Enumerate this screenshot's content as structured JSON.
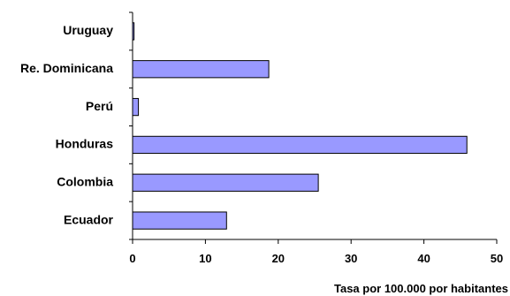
{
  "chart_data": {
    "type": "bar",
    "orientation": "horizontal",
    "categories": [
      "Uruguay",
      "Re. Dominicana",
      "Perú",
      "Honduras",
      "Colombia",
      "Ecuador"
    ],
    "values": [
      0.2,
      18.7,
      0.8,
      45.9,
      25.5,
      12.9
    ],
    "title": "",
    "xlabel": "Tasa por 100.000 por habitantes",
    "ylabel": "",
    "xlim": [
      0,
      50
    ],
    "xticks": [
      "0",
      "10",
      "20",
      "30",
      "40",
      "50"
    ],
    "grid": false,
    "legend": "none",
    "colors": {
      "bar_fill": "#9999ff",
      "bar_stroke": "#000000",
      "axis": "#000000"
    }
  }
}
